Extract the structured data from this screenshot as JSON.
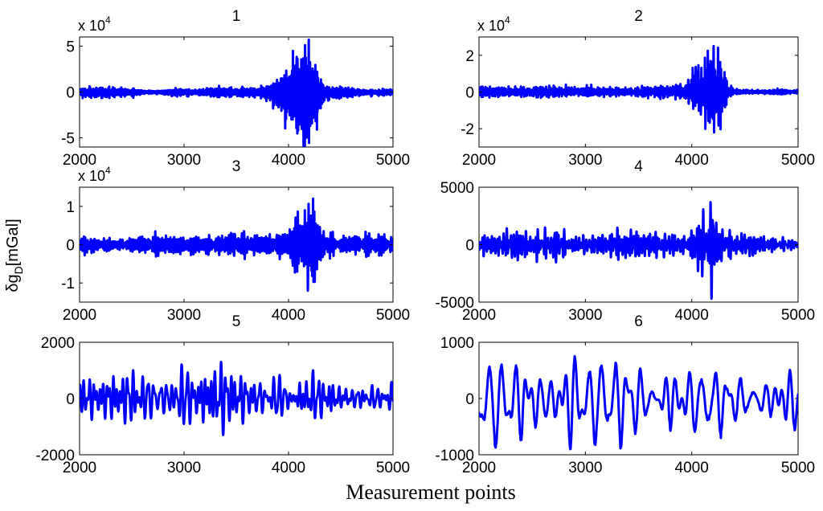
{
  "figure": {
    "ylabel_main": "δg",
    "ylabel_sub": "D",
    "ylabel_unit": "[mGal]",
    "xlabel": "Measurement points"
  },
  "chart_data": [
    {
      "type": "line",
      "title": "1",
      "xlim": [
        2000,
        5000
      ],
      "ylim": [
        -60000,
        60000
      ],
      "xticks": [
        2000,
        3000,
        4000,
        5000
      ],
      "xtick_labels": [
        "2000",
        "3000",
        "4000",
        "5000"
      ],
      "yticks": [
        -50000,
        0,
        50000
      ],
      "ytick_labels": [
        "-5",
        "0",
        "5"
      ],
      "multiplier_base": "x 10",
      "multiplier_exp": "4",
      "grid": false,
      "color": "#0000ff",
      "line_width": 3,
      "signal": {
        "base_amplitude": 4500,
        "bursts": [
          {
            "center": 4100,
            "width": 200,
            "amplitude": 35000
          },
          {
            "center": 4200,
            "width": 80,
            "amplitude": 30000
          }
        ],
        "peak_max": 57000,
        "peak_min": -62000,
        "dominant_period": 6
      }
    },
    {
      "type": "line",
      "title": "2",
      "xlim": [
        2000,
        5000
      ],
      "ylim": [
        -30000,
        30000
      ],
      "xticks": [
        2000,
        3000,
        4000,
        5000
      ],
      "xtick_labels": [
        "2000",
        "3000",
        "4000",
        "5000"
      ],
      "yticks": [
        -20000,
        0,
        20000
      ],
      "ytick_labels": [
        "-2",
        "0",
        "2"
      ],
      "multiplier_base": "x 10",
      "multiplier_exp": "4",
      "grid": false,
      "color": "#0000ff",
      "line_width": 3,
      "signal": {
        "base_amplitude": 1800,
        "bursts": [
          {
            "center": 4150,
            "width": 150,
            "amplitude": 12000
          },
          {
            "center": 4250,
            "width": 60,
            "amplitude": 10000
          }
        ],
        "peak_max": 25000,
        "peak_min": -22000,
        "dominant_period": 10
      }
    },
    {
      "type": "line",
      "title": "3",
      "xlim": [
        2000,
        5000
      ],
      "ylim": [
        -15000,
        15000
      ],
      "xticks": [
        2000,
        3000,
        4000,
        5000
      ],
      "xtick_labels": [
        "2000",
        "3000",
        "4000",
        "5000"
      ],
      "yticks": [
        -10000,
        0,
        10000
      ],
      "ytick_labels": [
        "-1",
        "0",
        "1"
      ],
      "multiplier_base": "x 10",
      "multiplier_exp": "4",
      "grid": false,
      "color": "#0000ff",
      "line_width": 3,
      "signal": {
        "base_amplitude": 1500,
        "bursts": [
          {
            "center": 4150,
            "width": 150,
            "amplitude": 5000
          },
          {
            "center": 4230,
            "width": 40,
            "amplitude": 6000
          }
        ],
        "peak_max": 12000,
        "peak_min": -12000,
        "dominant_period": 14
      }
    },
    {
      "type": "line",
      "title": "4",
      "xlim": [
        2000,
        5000
      ],
      "ylim": [
        -5000,
        5000
      ],
      "xticks": [
        2000,
        3000,
        4000,
        5000
      ],
      "xtick_labels": [
        "2000",
        "3000",
        "4000",
        "5000"
      ],
      "yticks": [
        -5000,
        0,
        5000
      ],
      "ytick_labels": [
        "-5000",
        "0",
        "5000"
      ],
      "multiplier_base": "",
      "multiplier_exp": "",
      "grid": false,
      "color": "#0000ff",
      "line_width": 3,
      "signal": {
        "base_amplitude": 1100,
        "bursts": [
          {
            "center": 4080,
            "width": 40,
            "amplitude": 2500
          },
          {
            "center": 4200,
            "width": 50,
            "amplitude": 2800
          }
        ],
        "peak_max": 3700,
        "peak_min": -4700,
        "dominant_period": 22
      }
    },
    {
      "type": "line",
      "title": "5",
      "xlim": [
        2000,
        5000
      ],
      "ylim": [
        -2000,
        2000
      ],
      "xticks": [
        2000,
        3000,
        4000,
        5000
      ],
      "xtick_labels": [
        "2000",
        "3000",
        "4000",
        "5000"
      ],
      "yticks": [
        -2000,
        0,
        2000
      ],
      "ytick_labels": [
        "-2000",
        "0",
        "2000"
      ],
      "multiplier_base": "",
      "multiplier_exp": "",
      "grid": false,
      "color": "#0000ff",
      "line_width": 3,
      "signal": {
        "base_amplitude": 800,
        "bursts": [],
        "peak_max": 1300,
        "peak_min": -1300,
        "dominant_period": 45
      }
    },
    {
      "type": "line",
      "title": "6",
      "xlim": [
        2000,
        5000
      ],
      "ylim": [
        -1000,
        1000
      ],
      "xticks": [
        2000,
        3000,
        4000,
        5000
      ],
      "xtick_labels": [
        "2000",
        "3000",
        "4000",
        "5000"
      ],
      "yticks": [
        -1000,
        0,
        1000
      ],
      "ytick_labels": [
        "-1000",
        "0",
        "1000"
      ],
      "multiplier_base": "",
      "multiplier_exp": "",
      "grid": false,
      "color": "#0000ff",
      "line_width": 3,
      "signal": {
        "base_amplitude": 400,
        "bursts": [],
        "peak_max": 750,
        "peak_min": -900,
        "dominant_period": 90
      }
    }
  ]
}
